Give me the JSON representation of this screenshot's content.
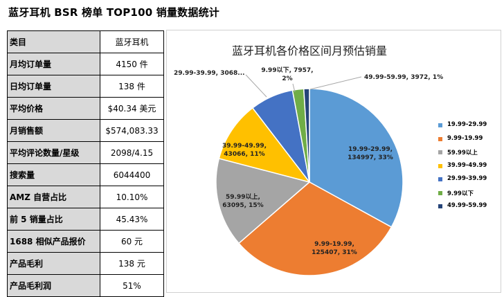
{
  "page": {
    "title": "蓝牙耳机 BSR 榜单 TOP100 销量数据统计"
  },
  "table": {
    "rows": [
      {
        "label": "类目",
        "value": "蓝牙耳机"
      },
      {
        "label": "月均订单量",
        "value": "4150  件"
      },
      {
        "label": "日均订单量",
        "value": "138  件"
      },
      {
        "label": "平均价格",
        "value": "$40.34  美元"
      },
      {
        "label": "月销售额",
        "value": "$574,083.33"
      },
      {
        "label": "平均评论数量/星级",
        "value": "2098/4.15"
      },
      {
        "label": "搜索量",
        "value": "6044400"
      },
      {
        "label": "AMZ 自营占比",
        "value": "10.10%"
      },
      {
        "label": "前 5 销量占比",
        "value": "45.43%"
      },
      {
        "label": "1688 相似产品报价",
        "value": "60  元"
      },
      {
        "label": "产品毛利",
        "value": "138  元"
      },
      {
        "label": "产品毛利润",
        "value": "51%"
      }
    ]
  },
  "chart_data": {
    "type": "pie",
    "title": "蓝牙耳机各价格区间月预估销量",
    "slices": [
      {
        "name": "19.99-29.99",
        "value": 134997,
        "percent": "33%",
        "color": "#5b9bd5",
        "label_lines": [
          "19.99-29.99,",
          "134997, 33%"
        ]
      },
      {
        "name": "9.99-19.99",
        "value": 125407,
        "percent": "31%",
        "color": "#ed7d31",
        "label_lines": [
          "9.99-19.99,",
          "125407, 31%"
        ]
      },
      {
        "name": "59.99以上",
        "value": 63095,
        "percent": "15%",
        "color": "#a5a5a5",
        "label_lines": [
          "59.99以上,",
          "63095, 15%"
        ]
      },
      {
        "name": "39.99-49.99",
        "value": 43066,
        "percent": "11%",
        "color": "#ffc000",
        "label_lines": [
          "39.99-49.99,",
          "43066, 11%"
        ]
      },
      {
        "name": "29.99-39.99",
        "value": 30687,
        "percent": "7%",
        "color": "#4472c4",
        "label_lines": [
          "29.99-39.99, 3068..."
        ]
      },
      {
        "name": "9.99以下",
        "value": 7957,
        "percent": "2%",
        "color": "#70ad47",
        "label_lines": [
          "9.99以下, 7957,",
          "2%"
        ]
      },
      {
        "name": "49.99-59.99",
        "value": 3972,
        "percent": "1%",
        "color": "#264478",
        "label_lines": [
          "49.99-59.99, 3972, 1%"
        ]
      }
    ],
    "legend": [
      "19.99-29.99",
      "9.99-19.99",
      "59.99以上",
      "39.99-49.99",
      "29.99-39.99",
      "9.99以下",
      "49.99-59.99"
    ],
    "legend_position": "right"
  }
}
